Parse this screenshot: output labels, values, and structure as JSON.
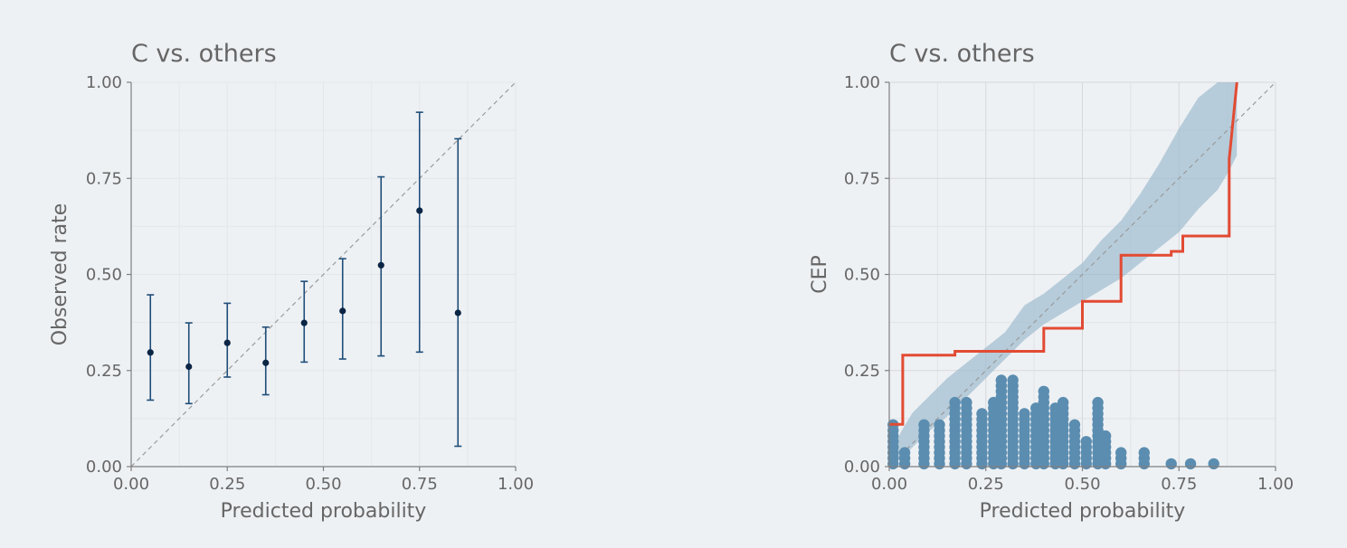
{
  "colors": {
    "background": "#eef1f4",
    "text": "#666666",
    "axis": "#7f7f7f",
    "grid": "#dddddd",
    "diagonal": "#9a9a9a",
    "errorbar": "#1f4e79",
    "errorbar_point": "#0b2545",
    "band": "#9ab8cc",
    "step_line": "#e24a33",
    "histogram_dot": "#5b8db0"
  },
  "chart_data": [
    {
      "type": "scatter",
      "subtype": "errorbar",
      "title": "C vs. others",
      "xlabel": "Predicted probability",
      "ylabel": "Observed rate",
      "xlim": [
        0,
        1
      ],
      "ylim": [
        0,
        1
      ],
      "xticks": [
        "0.00",
        "0.25",
        "0.50",
        "0.75",
        "1.00"
      ],
      "yticks": [
        "0.00",
        "0.25",
        "0.50",
        "0.75",
        "1.00"
      ],
      "grid": true,
      "reference_line": "diagonal",
      "points": [
        {
          "x": 0.05,
          "y": 0.297,
          "lo": 0.173,
          "hi": 0.447
        },
        {
          "x": 0.15,
          "y": 0.26,
          "lo": 0.164,
          "hi": 0.374
        },
        {
          "x": 0.25,
          "y": 0.322,
          "lo": 0.233,
          "hi": 0.425
        },
        {
          "x": 0.35,
          "y": 0.27,
          "lo": 0.187,
          "hi": 0.363
        },
        {
          "x": 0.45,
          "y": 0.374,
          "lo": 0.272,
          "hi": 0.482
        },
        {
          "x": 0.55,
          "y": 0.405,
          "lo": 0.28,
          "hi": 0.541
        },
        {
          "x": 0.65,
          "y": 0.524,
          "lo": 0.288,
          "hi": 0.754
        },
        {
          "x": 0.75,
          "y": 0.666,
          "lo": 0.298,
          "hi": 0.922
        },
        {
          "x": 0.85,
          "y": 0.4,
          "lo": 0.053,
          "hi": 0.853
        }
      ]
    },
    {
      "type": "line",
      "title": "C vs. others",
      "xlabel": "Predicted probability",
      "ylabel": "CEP",
      "xlim": [
        0,
        1
      ],
      "ylim": [
        0,
        1
      ],
      "xticks": [
        "0.00",
        "0.25",
        "0.50",
        "0.75",
        "1.00"
      ],
      "yticks": [
        "0.00",
        "0.25",
        "0.50",
        "0.75",
        "1.00"
      ],
      "grid": true,
      "reference_line": "diagonal",
      "band_x": [
        0.0,
        0.03,
        0.06,
        0.1,
        0.15,
        0.2,
        0.25,
        0.3,
        0.35,
        0.4,
        0.45,
        0.5,
        0.55,
        0.6,
        0.65,
        0.7,
        0.75,
        0.8,
        0.85,
        0.88,
        0.9
      ],
      "band_lower": [
        0.0,
        0.02,
        0.05,
        0.09,
        0.13,
        0.18,
        0.23,
        0.28,
        0.33,
        0.37,
        0.4,
        0.43,
        0.46,
        0.49,
        0.53,
        0.57,
        0.61,
        0.67,
        0.72,
        0.77,
        0.81
      ],
      "band_upper": [
        0.02,
        0.09,
        0.14,
        0.18,
        0.23,
        0.27,
        0.31,
        0.35,
        0.42,
        0.45,
        0.49,
        0.53,
        0.59,
        0.64,
        0.71,
        0.79,
        0.88,
        0.96,
        1.0,
        1.0,
        1.0
      ],
      "step_x": [
        0.0,
        0.035,
        0.035,
        0.17,
        0.17,
        0.4,
        0.4,
        0.5,
        0.5,
        0.6,
        0.6,
        0.73,
        0.73,
        0.76,
        0.76,
        0.88,
        0.88,
        0.9
      ],
      "step_y": [
        0.11,
        0.11,
        0.29,
        0.29,
        0.3,
        0.3,
        0.36,
        0.36,
        0.43,
        0.43,
        0.55,
        0.55,
        0.56,
        0.56,
        0.6,
        0.6,
        0.8,
        1.0
      ],
      "dot_histogram": {
        "bin_centers": [
          0.01,
          0.04,
          0.09,
          0.13,
          0.17,
          0.2,
          0.24,
          0.27,
          0.29,
          0.32,
          0.35,
          0.38,
          0.4,
          0.43,
          0.45,
          0.48,
          0.51,
          0.54,
          0.56,
          0.6,
          0.66,
          0.73,
          0.78,
          0.84
        ],
        "counts": [
          8,
          3,
          8,
          8,
          12,
          12,
          10,
          12,
          16,
          16,
          10,
          11,
          14,
          11,
          12,
          8,
          5,
          12,
          6,
          3,
          3,
          1,
          1,
          1
        ],
        "unit": 0.0145
      }
    }
  ]
}
